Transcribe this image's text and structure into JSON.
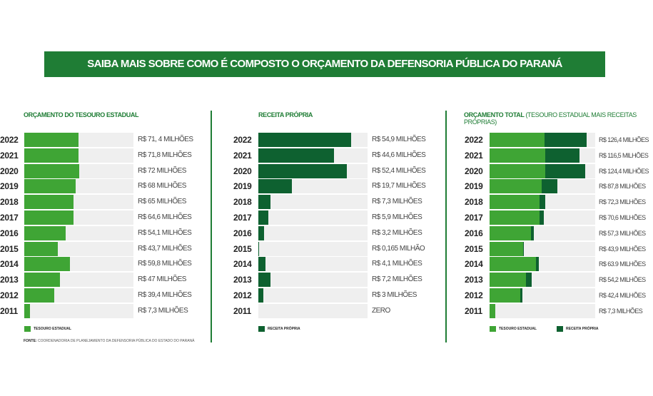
{
  "title": "SAIBA MAIS SOBRE COMO É COMPOSTO O ORÇAMENTO DA DEFENSORIA PÚBLICA DO PARANÁ",
  "source": {
    "label": "FONTE:",
    "text": "COORDENADORIA DE PLANEJAMENTO DA DEFENSORIA PÚBLICA DO ESTADO DO PARANÁ"
  },
  "colors": {
    "tesouro": "#3fa535",
    "receita": "#0e6130",
    "track": "#efefef",
    "title_bg": "#1f7d35"
  },
  "chart_data": [
    {
      "type": "bar",
      "orientation": "horizontal",
      "title": "ORÇAMENTO DO TESOURO ESTADUAL",
      "subtitle": "",
      "categories": [
        "2022",
        "2021",
        "2020",
        "2019",
        "2018",
        "2017",
        "2016",
        "2015",
        "2014",
        "2013",
        "2012",
        "2011"
      ],
      "series": [
        {
          "name": "TESOURO ESTADUAL",
          "values": [
            71.4,
            71.8,
            72,
            68,
            65,
            64.6,
            54.1,
            43.7,
            59.8,
            47,
            39.4,
            7.3
          ]
        }
      ],
      "labels": [
        "R$ 71, 4 MILHÕES",
        "R$ 71,8 MILHÕES",
        "R$ 72 MILHÕES",
        "R$ 68 MILHÕES",
        "R$ 65 MILHÕES",
        "R$ 64,6 MILHÕES",
        "R$ 54,1 MILHÕES",
        "R$ 43,7 MILHÕES",
        "R$ 59,8 MILHÕES",
        "R$ 47 MILHÕES",
        "R$ 39,4 MILHÕES",
        "R$ 7,3 MILHÕES"
      ]
    },
    {
      "type": "bar",
      "orientation": "horizontal",
      "title": "RECEITA PRÓPRIA",
      "subtitle": "",
      "categories": [
        "2022",
        "2021",
        "2020",
        "2019",
        "2018",
        "2017",
        "2016",
        "2015",
        "2014",
        "2013",
        "2012",
        "2011"
      ],
      "series": [
        {
          "name": "RECEITA PRÓPRIA",
          "values": [
            54.9,
            44.6,
            52.4,
            19.7,
            7.3,
            5.9,
            3.2,
            0.165,
            4.1,
            7.2,
            3,
            0
          ]
        }
      ],
      "labels": [
        "R$ 54,9 MILHÕES",
        "R$ 44,6 MILHÕES",
        "R$ 52,4 MILHÕES",
        "R$ 19,7 MILHÕES",
        "R$ 7,3 MILHÕES",
        "R$ 5,9 MILHÕES",
        "R$ 3,2 MILHÕES",
        "R$ 0,165 MILHÃO",
        "R$ 4,1 MILHÕES",
        "R$ 7,2 MILHÕES",
        "R$ 3 MILHÕES",
        "ZERO"
      ]
    },
    {
      "type": "bar",
      "orientation": "horizontal",
      "stacked": true,
      "title": "ORÇAMENTO TOTAL",
      "subtitle": "(TESOURO ESTADUAL MAIS RECEITAS PRÓPRIAS)",
      "categories": [
        "2022",
        "2021",
        "2020",
        "2019",
        "2018",
        "2017",
        "2016",
        "2015",
        "2014",
        "2013",
        "2012",
        "2011"
      ],
      "series": [
        {
          "name": "TESOURO ESTADUAL",
          "values": [
            71.4,
            71.8,
            72,
            68,
            65,
            64.6,
            54.1,
            43.7,
            59.8,
            47,
            39.4,
            7.3
          ]
        },
        {
          "name": "RECEITA PRÓPRIA",
          "values": [
            54.9,
            44.6,
            52.4,
            19.7,
            7.3,
            5.9,
            3.2,
            0.165,
            4.1,
            7.2,
            3,
            0
          ]
        }
      ],
      "labels": [
        "R$ 126,4 MILHÕES",
        "R$ 116,5 MILHÕES",
        "R$ 124,4 MILHÕES",
        "R$ 87,8 MILHÕES",
        "R$ 72,3 MILHÕES",
        "R$ 70,6 MILHÕES",
        "R$ 57,3 MILHÕES",
        "R$ 43,9 MILHÕES",
        "R$ 63.9  MILHÕES",
        "R$ 54,2 MILHÕES",
        "R$ 42,4 MILHÕES",
        "R$ 7,3 MILHÕES"
      ]
    }
  ]
}
